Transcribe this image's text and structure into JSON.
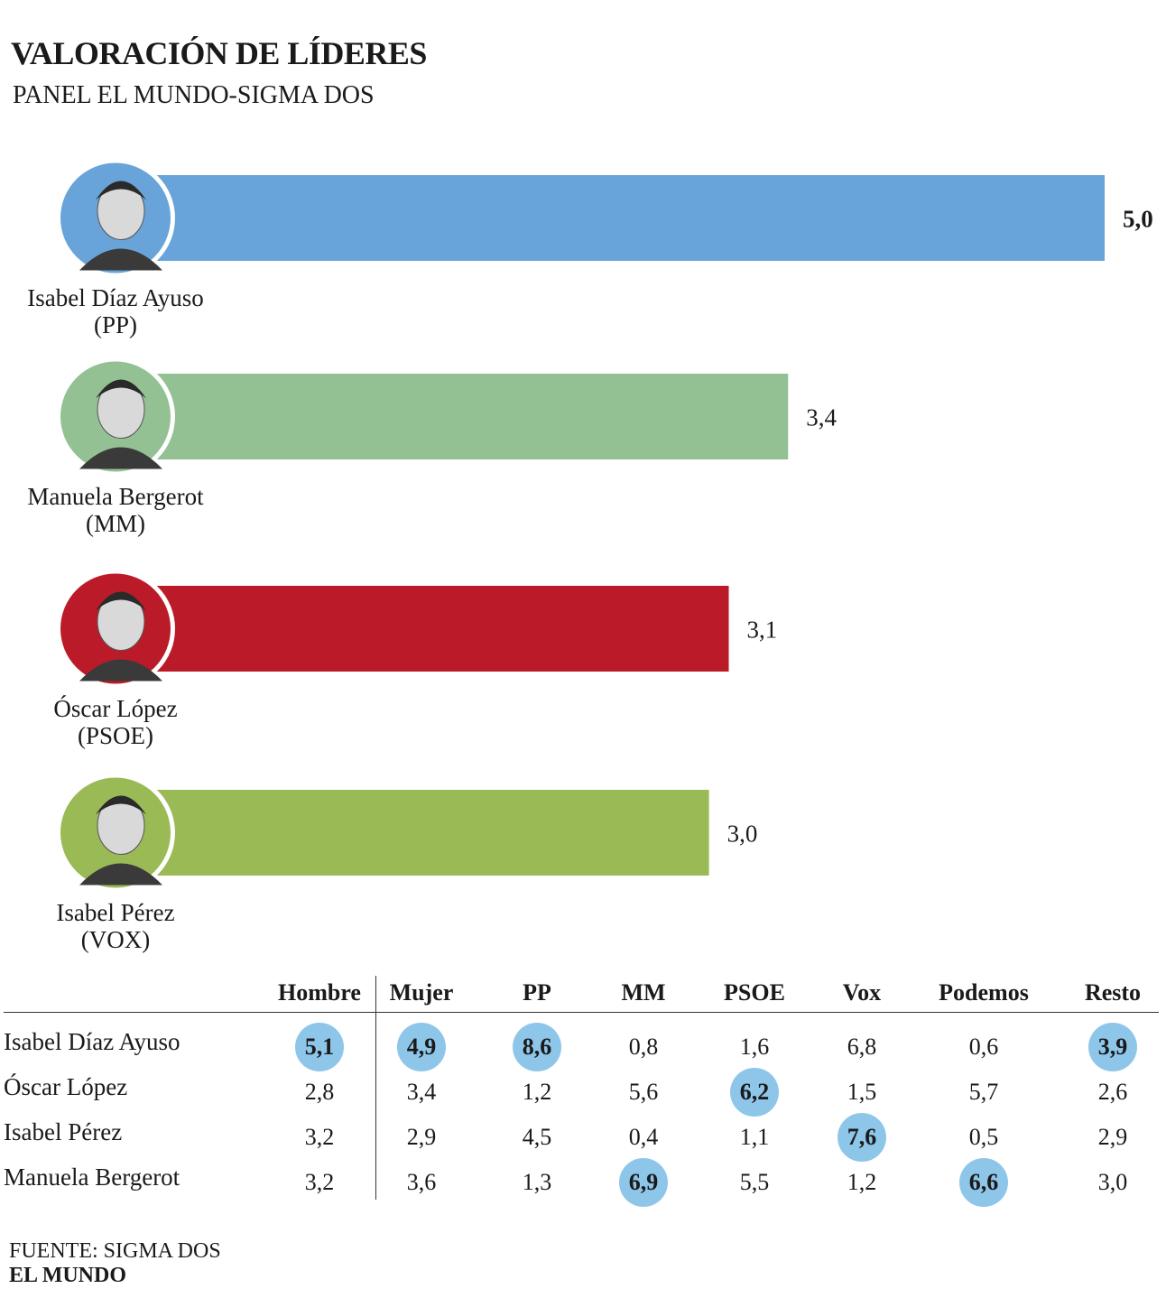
{
  "title": "VALORACIÓN DE LÍDERES",
  "subtitle": "PANEL EL MUNDO-SIGMA DOS",
  "chart_data": {
    "type": "bar",
    "orientation": "horizontal",
    "categories": [
      "Isabel Díaz Ayuso",
      "Manuela Bergerot",
      "Óscar López",
      "Isabel Pérez"
    ],
    "parties": [
      "(PP)",
      "(MM)",
      "(PSOE)",
      "(VOX)"
    ],
    "values": [
      5.0,
      3.4,
      3.1,
      3.0
    ],
    "value_labels": [
      "5,0",
      "3,4",
      "3,1",
      "3,0"
    ],
    "colors": [
      "#68a4d9",
      "#94c194",
      "#bb1b28",
      "#9aba56"
    ],
    "highlight_max_label": true
  },
  "table": {
    "headers": [
      "Hombre",
      "Mujer",
      "PP",
      "MM",
      "PSOE",
      "Vox",
      "Podemos",
      "Resto"
    ],
    "rows": [
      {
        "label": "Isabel Díaz Ayuso",
        "values": [
          "5,1",
          "4,9",
          "8,6",
          "0,8",
          "1,6",
          "6,8",
          "0,6",
          "3,9"
        ],
        "highlight": [
          true,
          true,
          true,
          false,
          false,
          false,
          false,
          true
        ]
      },
      {
        "label": "Óscar López",
        "values": [
          "2,8",
          "3,4",
          "1,2",
          "5,6",
          "6,2",
          "1,5",
          "5,7",
          "2,6"
        ],
        "highlight": [
          false,
          false,
          false,
          false,
          true,
          false,
          false,
          false
        ]
      },
      {
        "label": "Isabel Pérez",
        "values": [
          "3,2",
          "2,9",
          "4,5",
          "0,4",
          "1,1",
          "7,6",
          "0,5",
          "2,9"
        ],
        "highlight": [
          false,
          false,
          false,
          false,
          false,
          true,
          false,
          false
        ]
      },
      {
        "label": "Manuela Bergerot",
        "values": [
          "3,2",
          "3,6",
          "1,3",
          "6,9",
          "5,5",
          "1,2",
          "6,6",
          "3,0"
        ],
        "highlight": [
          false,
          false,
          false,
          true,
          false,
          false,
          true,
          false
        ]
      }
    ]
  },
  "footer": {
    "source": "FUENTE: SIGMA DOS",
    "brand": "EL MUNDO"
  }
}
